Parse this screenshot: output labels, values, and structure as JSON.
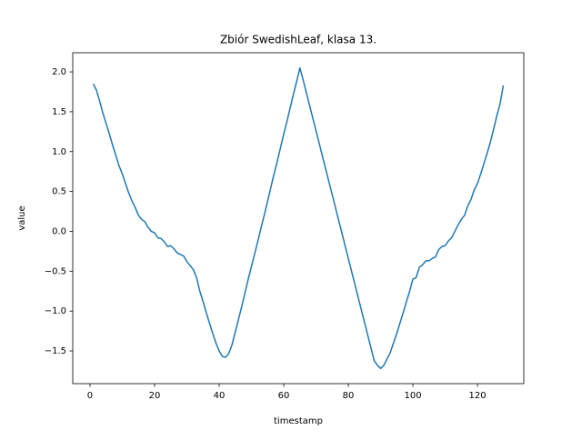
{
  "chart_data": {
    "type": "line",
    "title": "Zbiór SwedishLeaf, klasa 13.",
    "x_label": "timestamp",
    "y_label": "value",
    "x": [
      1,
      2,
      3,
      4,
      5,
      6,
      7,
      8,
      9,
      10,
      11,
      12,
      13,
      14,
      15,
      16,
      17,
      18,
      19,
      20,
      21,
      22,
      23,
      24,
      25,
      26,
      27,
      28,
      29,
      30,
      31,
      32,
      33,
      34,
      35,
      36,
      37,
      38,
      39,
      40,
      41,
      42,
      43,
      44,
      45,
      46,
      47,
      48,
      49,
      50,
      51,
      52,
      53,
      54,
      55,
      56,
      57,
      58,
      59,
      60,
      61,
      62,
      63,
      64,
      65,
      66,
      67,
      68,
      69,
      70,
      71,
      72,
      73,
      74,
      75,
      76,
      77,
      78,
      79,
      80,
      81,
      82,
      83,
      84,
      85,
      86,
      87,
      88,
      89,
      90,
      91,
      92,
      93,
      94,
      95,
      96,
      97,
      98,
      99,
      100,
      101,
      102,
      103,
      104,
      105,
      106,
      107,
      108,
      109,
      110,
      111,
      112,
      113,
      114,
      115,
      116,
      117,
      118,
      119,
      120,
      121,
      122,
      123,
      124,
      125,
      126,
      127,
      128
    ],
    "series": [
      {
        "color": "#1f77b4",
        "values": [
          1.85,
          1.77,
          1.63,
          1.48,
          1.35,
          1.22,
          1.08,
          0.95,
          0.82,
          0.72,
          0.6,
          0.48,
          0.38,
          0.3,
          0.2,
          0.15,
          0.12,
          0.05,
          0.0,
          -0.02,
          -0.08,
          -0.09,
          -0.13,
          -0.19,
          -0.18,
          -0.22,
          -0.27,
          -0.29,
          -0.31,
          -0.38,
          -0.43,
          -0.48,
          -0.58,
          -0.75,
          -0.88,
          -1.02,
          -1.15,
          -1.28,
          -1.4,
          -1.5,
          -1.57,
          -1.58,
          -1.53,
          -1.42,
          -1.26,
          -1.1,
          -0.94,
          -0.77,
          -0.6,
          -0.44,
          -0.28,
          -0.12,
          0.05,
          0.21,
          0.38,
          0.55,
          0.72,
          0.88,
          1.05,
          1.22,
          1.38,
          1.55,
          1.72,
          1.88,
          2.05,
          1.9,
          1.74,
          1.58,
          1.42,
          1.26,
          1.1,
          0.94,
          0.78,
          0.62,
          0.46,
          0.3,
          0.14,
          -0.02,
          -0.18,
          -0.34,
          -0.5,
          -0.66,
          -0.82,
          -0.98,
          -1.14,
          -1.3,
          -1.46,
          -1.62,
          -1.68,
          -1.72,
          -1.68,
          -1.6,
          -1.52,
          -1.4,
          -1.28,
          -1.15,
          -1.02,
          -0.88,
          -0.75,
          -0.6,
          -0.58,
          -0.45,
          -0.42,
          -0.37,
          -0.37,
          -0.34,
          -0.32,
          -0.23,
          -0.19,
          -0.18,
          -0.12,
          -0.08,
          0.0,
          0.08,
          0.15,
          0.2,
          0.32,
          0.4,
          0.52,
          0.6,
          0.72,
          0.85,
          0.98,
          1.12,
          1.28,
          1.45,
          1.6,
          1.83
        ]
      }
    ],
    "xlim": [
      -5.35,
      134.35
    ],
    "xticks": [
      0,
      20,
      40,
      60,
      80,
      100,
      120
    ],
    "ylim": [
      -1.91,
      2.24
    ],
    "yticks": [
      {
        "value": -1.5,
        "label": "−1.5"
      },
      {
        "value": -1.0,
        "label": "−1.0"
      },
      {
        "value": -0.5,
        "label": "−0.5"
      },
      {
        "value": 0.0,
        "label": "0.0"
      },
      {
        "value": 0.5,
        "label": "0.5"
      },
      {
        "value": 1.0,
        "label": "1.0"
      },
      {
        "value": 1.5,
        "label": "1.5"
      },
      {
        "value": 2.0,
        "label": "2.0"
      }
    ],
    "grid": false
  }
}
